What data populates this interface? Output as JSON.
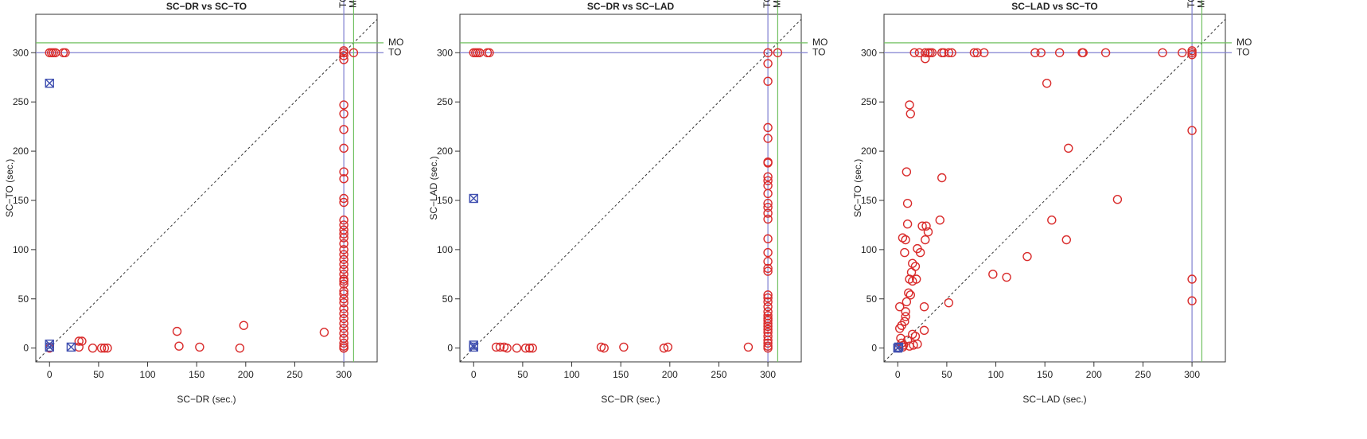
{
  "chart_data": [
    {
      "type": "scatter",
      "title": "SC−DR vs SC−TO",
      "x_label": "SC−DR (sec.)",
      "y_label": "SC−TO (sec.)",
      "xlim": [
        -14,
        334
      ],
      "ylim": [
        -14,
        339
      ],
      "xticks": [
        0,
        50,
        100,
        150,
        200,
        250,
        300
      ],
      "yticks": [
        0,
        50,
        100,
        150,
        200,
        250,
        300
      ],
      "diagonal": true,
      "ref_lines": [
        {
          "value": 300,
          "label": "TO",
          "color": "#8080d0"
        },
        {
          "value": 310,
          "label": "MO",
          "color": "#70c060"
        }
      ],
      "series": [
        {
          "marker": "circle",
          "color": "#d92b2b",
          "x": [
            0,
            2,
            4,
            6,
            14,
            16,
            300,
            300,
            310,
            300,
            300,
            300,
            300,
            300,
            300,
            300,
            300,
            300,
            300,
            300,
            300,
            300,
            300,
            300,
            300,
            300,
            300,
            300,
            300,
            300,
            300,
            300,
            300,
            300,
            300,
            300,
            300,
            300,
            300,
            300,
            300,
            300,
            300,
            300,
            300,
            300,
            300,
            300,
            300,
            0,
            30,
            33,
            30,
            44,
            53,
            56,
            59,
            130,
            132,
            153,
            194,
            198,
            280
          ],
          "y": [
            300,
            300,
            300,
            300,
            300,
            300,
            300,
            302,
            300,
            297,
            293,
            247,
            238,
            222,
            203,
            179,
            172,
            152,
            148,
            130,
            125,
            120,
            116,
            112,
            106,
            100,
            95,
            90,
            85,
            80,
            75,
            70,
            68,
            65,
            58,
            55,
            50,
            46,
            40,
            35,
            30,
            25,
            20,
            15,
            10,
            5,
            2,
            0,
            0,
            0,
            7,
            7,
            1,
            0,
            0,
            0,
            0,
            17,
            2,
            1,
            0,
            23,
            16
          ]
        },
        {
          "marker": "boxx",
          "color": "#4050b0",
          "x": [
            0,
            0,
            0,
            22
          ],
          "y": [
            269,
            4,
            1,
            1
          ]
        }
      ]
    },
    {
      "type": "scatter",
      "title": "SC−DR vs SC−LAD",
      "x_label": "SC−DR (sec.)",
      "y_label": "SC−LAD (sec.)",
      "xlim": [
        -14,
        334
      ],
      "ylim": [
        -14,
        339
      ],
      "xticks": [
        0,
        50,
        100,
        150,
        200,
        250,
        300
      ],
      "yticks": [
        0,
        50,
        100,
        150,
        200,
        250,
        300
      ],
      "diagonal": true,
      "ref_lines": [
        {
          "value": 300,
          "label": "TO",
          "color": "#8080d0"
        },
        {
          "value": 310,
          "label": "MO",
          "color": "#70c060"
        }
      ],
      "series": [
        {
          "marker": "circle",
          "color": "#d92b2b",
          "x": [
            0,
            2,
            4,
            6,
            14,
            16,
            300,
            310,
            300,
            300,
            300,
            300,
            300,
            300,
            300,
            300,
            300,
            300,
            300,
            300,
            300,
            300,
            300,
            300,
            300,
            300,
            300,
            300,
            300,
            300,
            300,
            300,
            300,
            300,
            300,
            300,
            300,
            300,
            300,
            300,
            300,
            300,
            300,
            300,
            23,
            27,
            31,
            34,
            44,
            53,
            57,
            60,
            130,
            133,
            153,
            194,
            198,
            280
          ],
          "y": [
            300,
            300,
            300,
            300,
            300,
            300,
            300,
            300,
            289,
            271,
            224,
            213,
            189,
            188,
            174,
            170,
            165,
            157,
            147,
            143,
            137,
            131,
            111,
            97,
            88,
            81,
            78,
            54,
            51,
            47,
            42,
            37,
            33,
            30,
            28,
            25,
            22,
            19,
            16,
            12,
            8,
            5,
            2,
            0,
            1,
            1,
            1,
            0,
            0,
            0,
            0,
            0,
            1,
            0,
            1,
            0,
            1,
            1
          ]
        },
        {
          "marker": "boxx",
          "color": "#4050b0",
          "x": [
            0,
            0,
            0
          ],
          "y": [
            152,
            3,
            1
          ]
        }
      ]
    },
    {
      "type": "scatter",
      "title": "SC−LAD vs SC−TO",
      "x_label": "SC−LAD (sec.)",
      "y_label": "SC−TO (sec.)",
      "xlim": [
        -14,
        334
      ],
      "ylim": [
        -14,
        339
      ],
      "xticks": [
        0,
        50,
        100,
        150,
        200,
        250,
        300
      ],
      "yticks": [
        0,
        50,
        100,
        150,
        200,
        250,
        300
      ],
      "diagonal": true,
      "ref_lines": [
        {
          "value": 300,
          "label": "TO",
          "color": "#8080d0"
        },
        {
          "value": 310,
          "label": "MO",
          "color": "#70c060"
        }
      ],
      "series": [
        {
          "marker": "circle",
          "color": "#d92b2b",
          "x": [
            17,
            22,
            28,
            31,
            33,
            35,
            45,
            47,
            52,
            55,
            78,
            81,
            88,
            140,
            146,
            165,
            188,
            189,
            212,
            270,
            290,
            300,
            28,
            300,
            300,
            152,
            12,
            13,
            300,
            174,
            9,
            45,
            224,
            10,
            157,
            43,
            10,
            29,
            25,
            31,
            5,
            8,
            28,
            172,
            20,
            23,
            7,
            15,
            18,
            14,
            12,
            19,
            15,
            97,
            111,
            300,
            11,
            13,
            9,
            52,
            300,
            2,
            27,
            8,
            8,
            7,
            4,
            2,
            15,
            27,
            18,
            3,
            10,
            4,
            6,
            20,
            132,
            1,
            5,
            12,
            16
          ],
          "y": [
            300,
            300,
            300,
            300,
            300,
            300,
            300,
            300,
            300,
            300,
            300,
            300,
            300,
            300,
            300,
            300,
            300,
            300,
            300,
            300,
            300,
            300,
            294,
            302,
            298,
            269,
            247,
            238,
            221,
            203,
            179,
            173,
            151,
            147,
            130,
            130,
            126,
            124,
            124,
            118,
            112,
            110,
            110,
            110,
            101,
            97,
            97,
            86,
            83,
            77,
            70,
            70,
            68,
            75,
            72,
            70,
            56,
            54,
            47,
            46,
            48,
            42,
            42,
            37,
            32,
            27,
            23,
            20,
            14,
            18,
            12,
            10,
            8,
            5,
            3,
            4,
            93,
            0,
            1,
            2,
            3
          ]
        },
        {
          "marker": "boxx",
          "color": "#4050b0",
          "x": [
            0,
            1
          ],
          "y": [
            0,
            1
          ]
        }
      ]
    }
  ]
}
